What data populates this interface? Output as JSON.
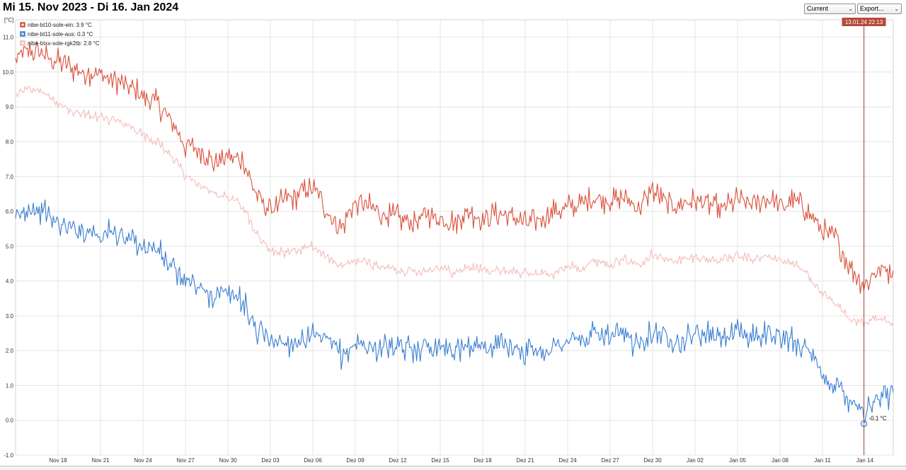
{
  "header": {
    "title": "Mi 15. Nov 2023 - Di 16. Jan 2024"
  },
  "controls": {
    "period_selected": "Current",
    "export_label": "Export..."
  },
  "chart_data": {
    "type": "line",
    "ylabel": "[°C]",
    "ylim": [
      -1.0,
      11.5
    ],
    "yticks": [
      "-1.0",
      "0.0",
      "1.0",
      "2.0",
      "3.0",
      "4.0",
      "5.0",
      "6.0",
      "7.0",
      "8.0",
      "9.0",
      "10.0",
      "11.0"
    ],
    "xlim": [
      "2023-11-15",
      "2024-01-16"
    ],
    "xticks": [
      {
        "date": "2023-11-18",
        "label": "Nov 18"
      },
      {
        "date": "2023-11-21",
        "label": "Nov 21"
      },
      {
        "date": "2023-11-24",
        "label": "Nov 24"
      },
      {
        "date": "2023-11-27",
        "label": "Nov 27"
      },
      {
        "date": "2023-11-30",
        "label": "Nov 30"
      },
      {
        "date": "2023-12-03",
        "label": "Dez 03"
      },
      {
        "date": "2023-12-06",
        "label": "Dez 06"
      },
      {
        "date": "2023-12-09",
        "label": "Dez 09"
      },
      {
        "date": "2023-12-12",
        "label": "Dez 12"
      },
      {
        "date": "2023-12-15",
        "label": "Dez 15"
      },
      {
        "date": "2023-12-18",
        "label": "Dez 18"
      },
      {
        "date": "2023-12-21",
        "label": "Dez 21"
      },
      {
        "date": "2023-12-24",
        "label": "Dez 24"
      },
      {
        "date": "2023-12-27",
        "label": "Dez 27"
      },
      {
        "date": "2023-12-30",
        "label": "Dez 30"
      },
      {
        "date": "2024-01-02",
        "label": "Jan 02"
      },
      {
        "date": "2024-01-05",
        "label": "Jan 05"
      },
      {
        "date": "2024-01-08",
        "label": "Jan 08"
      },
      {
        "date": "2024-01-11",
        "label": "Jan 11"
      },
      {
        "date": "2024-01-14",
        "label": "Jan 14"
      }
    ],
    "grid": true,
    "legend_position": "top-left",
    "series": [
      {
        "name": "nibe-bt10-sole-ein: 3.9 °C",
        "color": "#d9513c",
        "x": [
          "2023-11-15",
          "2023-11-16",
          "2023-11-17",
          "2023-11-18",
          "2023-11-19",
          "2023-11-20",
          "2023-11-21",
          "2023-11-22",
          "2023-11-23",
          "2023-11-24",
          "2023-11-25",
          "2023-11-26",
          "2023-11-27",
          "2023-11-28",
          "2023-11-29",
          "2023-11-30",
          "2023-12-01",
          "2023-12-02",
          "2023-12-03",
          "2023-12-04",
          "2023-12-05",
          "2023-12-06",
          "2023-12-07",
          "2023-12-08",
          "2023-12-09",
          "2023-12-10",
          "2023-12-11",
          "2023-12-12",
          "2023-12-13",
          "2023-12-14",
          "2023-12-15",
          "2023-12-16",
          "2023-12-17",
          "2023-12-18",
          "2023-12-19",
          "2023-12-20",
          "2023-12-21",
          "2023-12-22",
          "2023-12-23",
          "2023-12-24",
          "2023-12-25",
          "2023-12-26",
          "2023-12-27",
          "2023-12-28",
          "2023-12-29",
          "2023-12-30",
          "2023-12-31",
          "2024-01-01",
          "2024-01-02",
          "2024-01-03",
          "2024-01-04",
          "2024-01-05",
          "2024-01-06",
          "2024-01-07",
          "2024-01-08",
          "2024-01-09",
          "2024-01-10",
          "2024-01-11",
          "2024-01-12",
          "2024-01-13",
          "2024-01-14",
          "2024-01-15",
          "2024-01-16"
        ],
        "y": [
          10.4,
          10.6,
          10.5,
          10.3,
          10.1,
          10.0,
          9.9,
          9.8,
          9.6,
          9.3,
          9.1,
          8.6,
          7.9,
          7.8,
          7.4,
          7.6,
          7.5,
          6.5,
          6.0,
          6.3,
          6.5,
          6.7,
          6.0,
          5.5,
          6.3,
          6.1,
          5.9,
          5.8,
          5.7,
          5.9,
          5.8,
          5.7,
          6.0,
          5.8,
          5.9,
          5.9,
          5.6,
          5.8,
          6.0,
          6.1,
          6.2,
          6.4,
          6.3,
          6.4,
          6.1,
          6.6,
          6.2,
          6.2,
          6.3,
          6.2,
          6.1,
          6.3,
          6.2,
          6.4,
          6.1,
          6.3,
          6.0,
          5.4,
          5.2,
          4.4,
          3.9,
          4.4,
          4.3
        ]
      },
      {
        "name": "nibe-bt11-sole-aus: 0.3 °C",
        "color": "#3a7fd0",
        "x": [
          "2023-11-15",
          "2023-11-16",
          "2023-11-17",
          "2023-11-18",
          "2023-11-19",
          "2023-11-20",
          "2023-11-21",
          "2023-11-22",
          "2023-11-23",
          "2023-11-24",
          "2023-11-25",
          "2023-11-26",
          "2023-11-27",
          "2023-11-28",
          "2023-11-29",
          "2023-11-30",
          "2023-12-01",
          "2023-12-02",
          "2023-12-03",
          "2023-12-04",
          "2023-12-05",
          "2023-12-06",
          "2023-12-07",
          "2023-12-08",
          "2023-12-09",
          "2023-12-10",
          "2023-12-11",
          "2023-12-12",
          "2023-12-13",
          "2023-12-14",
          "2023-12-15",
          "2023-12-16",
          "2023-12-17",
          "2023-12-18",
          "2023-12-19",
          "2023-12-20",
          "2023-12-21",
          "2023-12-22",
          "2023-12-23",
          "2023-12-24",
          "2023-12-25",
          "2023-12-26",
          "2023-12-27",
          "2023-12-28",
          "2023-12-29",
          "2023-12-30",
          "2023-12-31",
          "2024-01-01",
          "2024-01-02",
          "2024-01-03",
          "2024-01-04",
          "2024-01-05",
          "2024-01-06",
          "2024-01-07",
          "2024-01-08",
          "2024-01-09",
          "2024-01-10",
          "2024-01-11",
          "2024-01-12",
          "2024-01-13",
          "2024-01-14",
          "2024-01-15",
          "2024-01-16"
        ],
        "y": [
          5.8,
          6.1,
          6.0,
          5.6,
          5.5,
          5.5,
          5.3,
          5.4,
          5.2,
          5.0,
          4.9,
          4.4,
          4.0,
          3.8,
          3.6,
          3.6,
          3.5,
          2.6,
          2.4,
          2.2,
          2.3,
          2.4,
          2.3,
          1.9,
          2.2,
          2.1,
          2.1,
          2.0,
          2.1,
          2.1,
          2.2,
          2.0,
          2.2,
          2.1,
          2.1,
          2.2,
          2.0,
          2.0,
          2.1,
          2.3,
          2.3,
          2.5,
          2.4,
          2.4,
          2.2,
          2.6,
          2.4,
          2.3,
          2.5,
          2.4,
          2.4,
          2.5,
          2.4,
          2.5,
          2.4,
          2.3,
          2.0,
          1.2,
          1.0,
          0.6,
          0.3,
          0.6,
          0.8
        ]
      },
      {
        "name": "nibe-btxx-sole-rgk2tb: 2.8 °C",
        "color": "#f4bcbc",
        "x": [
          "2023-11-15",
          "2023-11-16",
          "2023-11-17",
          "2023-11-18",
          "2023-11-19",
          "2023-11-20",
          "2023-11-21",
          "2023-11-22",
          "2023-11-23",
          "2023-11-24",
          "2023-11-25",
          "2023-11-26",
          "2023-11-27",
          "2023-11-28",
          "2023-11-29",
          "2023-11-30",
          "2023-12-01",
          "2023-12-02",
          "2023-12-03",
          "2023-12-04",
          "2023-12-05",
          "2023-12-06",
          "2023-12-07",
          "2023-12-08",
          "2023-12-09",
          "2023-12-10",
          "2023-12-11",
          "2023-12-12",
          "2023-12-13",
          "2023-12-14",
          "2023-12-15",
          "2023-12-16",
          "2023-12-17",
          "2023-12-18",
          "2023-12-19",
          "2023-12-20",
          "2023-12-21",
          "2023-12-22",
          "2023-12-23",
          "2023-12-24",
          "2023-12-25",
          "2023-12-26",
          "2023-12-27",
          "2023-12-28",
          "2023-12-29",
          "2023-12-30",
          "2023-12-31",
          "2024-01-01",
          "2024-01-02",
          "2024-01-03",
          "2024-01-04",
          "2024-01-05",
          "2024-01-06",
          "2024-01-07",
          "2024-01-08",
          "2024-01-09",
          "2024-01-10",
          "2024-01-11",
          "2024-01-12",
          "2024-01-13",
          "2024-01-14",
          "2024-01-15",
          "2024-01-16"
        ],
        "y": [
          9.4,
          9.5,
          9.4,
          9.1,
          8.9,
          8.8,
          8.7,
          8.6,
          8.4,
          8.2,
          8.0,
          7.6,
          7.0,
          6.8,
          6.5,
          6.4,
          6.2,
          5.4,
          4.9,
          4.8,
          4.9,
          5.0,
          4.7,
          4.4,
          4.6,
          4.5,
          4.4,
          4.3,
          4.3,
          4.3,
          4.4,
          4.2,
          4.4,
          4.3,
          4.3,
          4.3,
          4.2,
          4.2,
          4.2,
          4.4,
          4.4,
          4.6,
          4.5,
          4.6,
          4.5,
          4.8,
          4.6,
          4.6,
          4.7,
          4.6,
          4.6,
          4.7,
          4.6,
          4.7,
          4.6,
          4.5,
          4.2,
          3.6,
          3.3,
          2.9,
          2.8,
          2.9,
          2.7
        ]
      }
    ],
    "cursor": {
      "x": "2024-01-13 22:13",
      "label": "13.01.24 22:13",
      "value": -0.1,
      "value_label": "-0.1 °C"
    }
  }
}
